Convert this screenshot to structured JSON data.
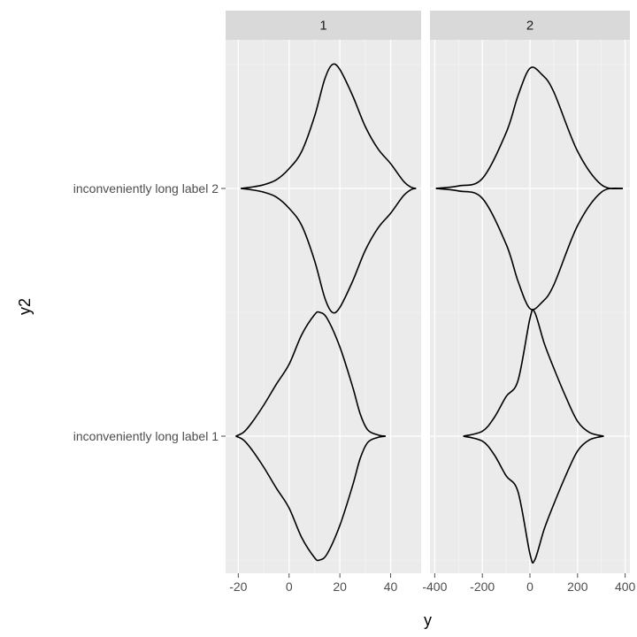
{
  "chart_data": {
    "type": "violin",
    "xlabel": "y",
    "ylabel": "y2",
    "categories": [
      "inconveniently long label 1",
      "inconveniently long label 2"
    ],
    "facets": [
      {
        "strip_label": "1",
        "xlim": [
          -25,
          52
        ],
        "x_ticks": [
          -20,
          0,
          20,
          40
        ],
        "x_tick_labels": [
          "-20",
          "0",
          "20",
          "40"
        ],
        "violins": [
          {
            "category": "inconveniently long label 2",
            "profile": [
              [
                -19,
                0.0
              ],
              [
                -15,
                0.01
              ],
              [
                -10,
                0.03
              ],
              [
                -5,
                0.07
              ],
              [
                0,
                0.16
              ],
              [
                5,
                0.3
              ],
              [
                10,
                0.58
              ],
              [
                14,
                0.88
              ],
              [
                17,
                1.0
              ],
              [
                20,
                0.96
              ],
              [
                25,
                0.75
              ],
              [
                30,
                0.5
              ],
              [
                35,
                0.32
              ],
              [
                40,
                0.2
              ],
              [
                45,
                0.06
              ],
              [
                48,
                0.01
              ],
              [
                50,
                0.0
              ]
            ]
          },
          {
            "category": "inconveniently long label 1",
            "profile": [
              [
                -21,
                0.0
              ],
              [
                -18,
                0.03
              ],
              [
                -15,
                0.1
              ],
              [
                -10,
                0.25
              ],
              [
                -5,
                0.42
              ],
              [
                0,
                0.58
              ],
              [
                5,
                0.82
              ],
              [
                10,
                0.98
              ],
              [
                12,
                1.0
              ],
              [
                15,
                0.95
              ],
              [
                20,
                0.72
              ],
              [
                25,
                0.4
              ],
              [
                28,
                0.18
              ],
              [
                31,
                0.05
              ],
              [
                35,
                0.01
              ],
              [
                38,
                0.0
              ]
            ]
          }
        ]
      },
      {
        "strip_label": "2",
        "xlim": [
          -420,
          420
        ],
        "x_ticks": [
          -400,
          -200,
          0,
          200,
          400
        ],
        "x_tick_labels": [
          "-400",
          "-200",
          "0",
          "200",
          "400"
        ],
        "violins": [
          {
            "category": "inconveniently long label 2",
            "profile": [
              [
                -395,
                0.0
              ],
              [
                -300,
                0.02
              ],
              [
                -200,
                0.08
              ],
              [
                -100,
                0.45
              ],
              [
                -50,
                0.75
              ],
              [
                0,
                0.97
              ],
              [
                50,
                0.92
              ],
              [
                100,
                0.78
              ],
              [
                200,
                0.3
              ],
              [
                300,
                0.03
              ],
              [
                390,
                0.0
              ]
            ]
          },
          {
            "category": "inconveniently long label 1",
            "profile": [
              [
                -280,
                0.0
              ],
              [
                -200,
                0.04
              ],
              [
                -150,
                0.15
              ],
              [
                -100,
                0.32
              ],
              [
                -50,
                0.45
              ],
              [
                0,
                0.95
              ],
              [
                20,
                1.0
              ],
              [
                60,
                0.75
              ],
              [
                100,
                0.55
              ],
              [
                150,
                0.32
              ],
              [
                200,
                0.12
              ],
              [
                250,
                0.03
              ],
              [
                310,
                0.0
              ]
            ]
          }
        ]
      }
    ]
  }
}
